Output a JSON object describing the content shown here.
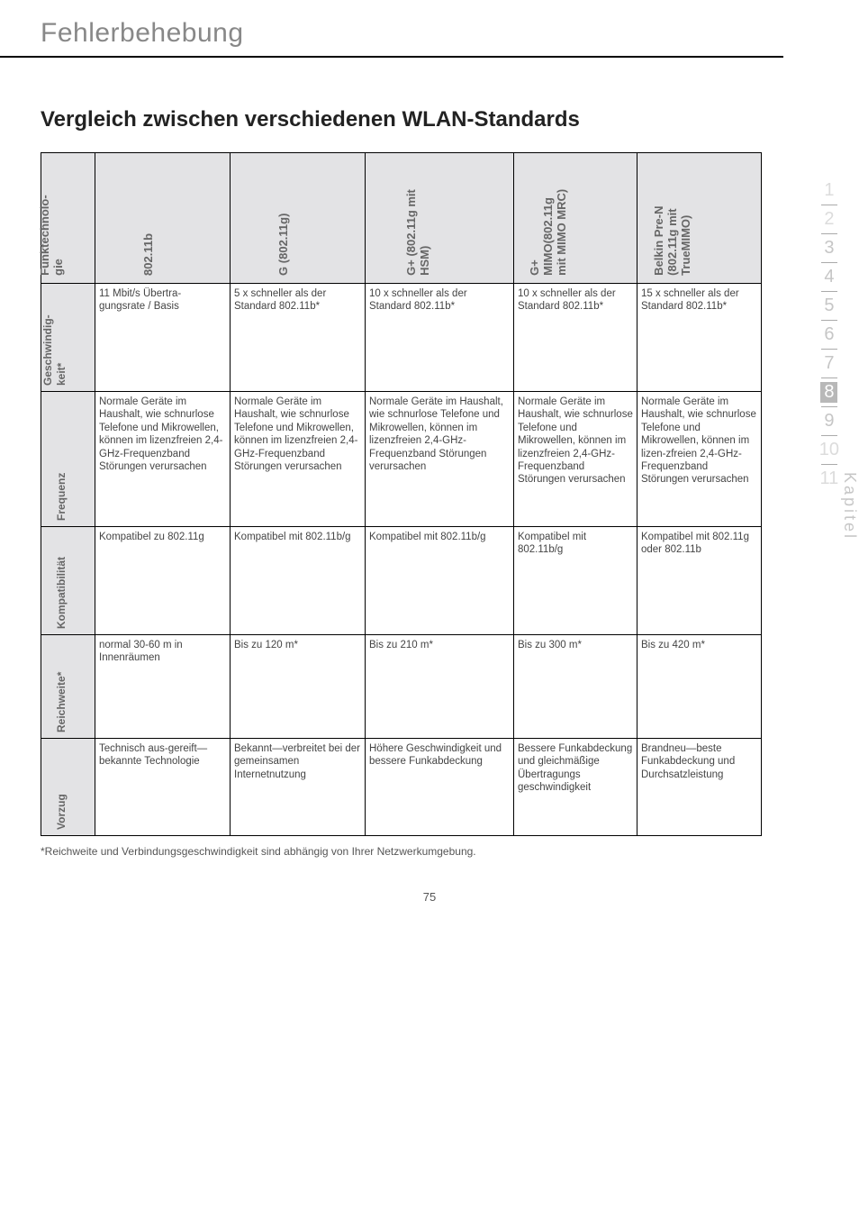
{
  "header": {
    "title": "Fehlerbehebung"
  },
  "section": {
    "title": "Vergleich zwischen verschiedenen WLAN-Standards"
  },
  "columns": {
    "tech": "Funktechnolo-\ngie",
    "c1": "802.11b",
    "c2": "G (802.11g)",
    "c3": "G+ (802.11g mit\nHSM)",
    "c4": "G+\nMIMO(802.11g\nmit MIMO MRC)",
    "c5": "Belkin Pre-N\n(802.11g mit\nTrueMIMO)"
  },
  "rows": {
    "speed": {
      "label": "Geschwindig-\nkeit*",
      "c1": "11 Mbit/s Übertra-gungsrate / Basis",
      "c2": "5 x schneller als der Standard 802.11b*",
      "c3": "10 x schneller als der Standard 802.11b*",
      "c4": "10 x schneller als der Standard 802.11b*",
      "c5": "15 x schneller als der Standard 802.11b*"
    },
    "freq": {
      "label": "Frequenz",
      "c1": "Normale Geräte im Haushalt, wie schnurlose Telefone und Mikrowellen, können im lizenzfreien 2,4-GHz-Frequenzband Störungen verursachen",
      "c2": "Normale Geräte im Haushalt, wie schnurlose Telefone und Mikrowellen, können im lizenzfreien 2,4-GHz-Frequenzband Störungen verursachen",
      "c3": "Normale Geräte im Haushalt, wie schnurlose Telefone und Mikrowellen, können im lizenzfreien 2,4-GHz-Frequenzband Störungen verursachen",
      "c4": "Normale Geräte im Haushalt, wie schnurlose Telefone und Mikrowellen, können im lizenzfreien 2,4-GHz-Frequenzband Störungen verursachen",
      "c5": "Normale Geräte im Haushalt, wie schnurlose Telefone und Mikrowellen, können im lizen-zfreien 2,4-GHz-Frequenzband Störungen verursachen"
    },
    "compat": {
      "label": "Kompatibilität",
      "c1": "Kompatibel zu 802.11g",
      "c2": "Kompatibel mit 802.11b/g",
      "c3": "Kompatibel mit 802.11b/g",
      "c4": "Kompatibel mit 802.11b/g",
      "c5": "Kompatibel mit 802.11g oder 802.11b"
    },
    "range": {
      "label": "Reichweite*",
      "c1": "normal 30-60 m in Innenräumen",
      "c2": "Bis zu 120 m*",
      "c3": "Bis zu 210 m*",
      "c4": "Bis zu 300 m*",
      "c5": "Bis zu 420 m*"
    },
    "adv": {
      "label": "Vorzug",
      "c1": "Technisch aus-gereift—bekannte Technologie",
      "c2": "Bekannt—verbreitet bei der gemeinsamen Internetnutzung",
      "c3": "Höhere Geschwindigkeit und bessere Funkabdeckung",
      "c4": "Bessere Funkabdeckung und gleichmäßige Übertragungs geschwindigkeit",
      "c5": "Brandneu—beste Funkabdeckung und Durchsatzleistung"
    }
  },
  "footnote": "*Reichweite und Verbindungsgeschwindigkeit sind abhängig von Ihrer Netzwerkumgebung.",
  "page_num": "75",
  "sidenav": [
    "1",
    "2",
    "3",
    "4",
    "5",
    "6",
    "7",
    "8",
    "9",
    "10",
    "11"
  ],
  "sidenav_active": "8",
  "kapitel": "Kapitel"
}
